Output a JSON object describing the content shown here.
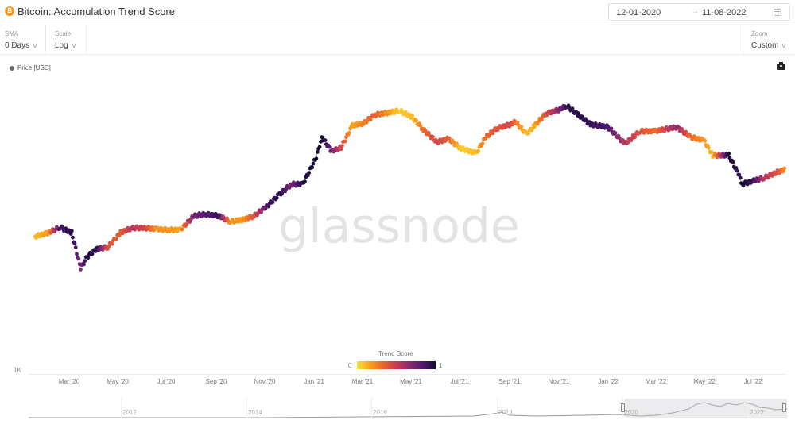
{
  "header": {
    "asset_icon": "bitcoin-icon",
    "title": "Bitcoin: Accumulation Trend Score",
    "date_from": "12-01-2020",
    "date_arrow": "→",
    "date_to": "11-08-2022",
    "calendar_icon": "calendar-icon"
  },
  "toolbar": {
    "sma": {
      "label": "SMA",
      "value": "0 Days"
    },
    "scale": {
      "label": "Scale",
      "value": "Log"
    },
    "zoom": {
      "label": "Zoom",
      "value": "Custom"
    },
    "chevron": "∨"
  },
  "legend": {
    "series_label": "Price [USD]",
    "camera_icon": "camera-icon"
  },
  "watermark": "glassnode",
  "colors": {
    "trend_low": "#fce03a",
    "trend_mid": "#c73c55",
    "trend_high": "#140b35",
    "accent": "#f7931a"
  },
  "navigator": {
    "years": [
      "2012",
      "2014",
      "2016",
      "2018",
      "2020",
      "2022"
    ]
  },
  "chart_data": {
    "type": "scatter",
    "title": "Bitcoin: Accumulation Trend Score",
    "xlabel": "",
    "ylabel": "Price [USD]",
    "y_scale": "log",
    "y_tick_labels": [
      "1K"
    ],
    "x_tick_labels": [
      "Mar '20",
      "May '20",
      "Jul '20",
      "Sep '20",
      "Nov '20",
      "Jan '21",
      "Mar '21",
      "May '21",
      "Jul '21",
      "Sep '21",
      "Nov '21",
      "Jan '22",
      "Mar '22",
      "May '22",
      "Jul '22"
    ],
    "color_axis": {
      "title": "Trend Score",
      "min": 0,
      "max": 1,
      "min_label": "0",
      "max_label": "1"
    },
    "legend": [
      "Price [USD]"
    ],
    "grid": false,
    "x": [
      "2020-01-15",
      "2020-02-01",
      "2020-02-15",
      "2020-03-01",
      "2020-03-12",
      "2020-03-20",
      "2020-04-01",
      "2020-04-15",
      "2020-05-01",
      "2020-05-15",
      "2020-06-01",
      "2020-06-15",
      "2020-07-01",
      "2020-07-15",
      "2020-08-01",
      "2020-08-15",
      "2020-09-01",
      "2020-09-15",
      "2020-10-01",
      "2020-10-15",
      "2020-11-01",
      "2020-11-15",
      "2020-12-01",
      "2020-12-15",
      "2021-01-01",
      "2021-01-08",
      "2021-01-20",
      "2021-02-01",
      "2021-02-15",
      "2021-03-01",
      "2021-03-15",
      "2021-04-01",
      "2021-04-15",
      "2021-05-01",
      "2021-05-15",
      "2021-06-01",
      "2021-06-15",
      "2021-07-01",
      "2021-07-20",
      "2021-08-01",
      "2021-08-15",
      "2021-09-01",
      "2021-09-07",
      "2021-09-21",
      "2021-10-01",
      "2021-10-15",
      "2021-11-01",
      "2021-11-10",
      "2021-11-25",
      "2021-12-10",
      "2022-01-01",
      "2022-01-22",
      "2022-02-10",
      "2022-03-01",
      "2022-03-28",
      "2022-04-15",
      "2022-05-01",
      "2022-05-12",
      "2022-06-01",
      "2022-06-13",
      "2022-06-18",
      "2022-07-01",
      "2022-07-15",
      "2022-08-01",
      "2022-08-11"
    ],
    "price_usd": [
      8300,
      8800,
      9600,
      8800,
      5000,
      6000,
      6800,
      7000,
      8800,
      9500,
      9500,
      9300,
      9200,
      9200,
      11500,
      11800,
      11500,
      10500,
      10800,
      11500,
      13500,
      16000,
      19000,
      19000,
      29000,
      40000,
      32000,
      34000,
      48000,
      50000,
      57000,
      59000,
      61000,
      55000,
      45000,
      37000,
      39000,
      33500,
      31000,
      40000,
      46000,
      49000,
      51000,
      42000,
      48000,
      58000,
      62000,
      66000,
      57000,
      49000,
      47000,
      36000,
      44000,
      44000,
      47000,
      40000,
      38000,
      30000,
      30000,
      22500,
      19000,
      20000,
      21000,
      23000,
      24000
    ],
    "trend_score": [
      0.1,
      0.2,
      0.85,
      0.95,
      0.7,
      0.95,
      0.95,
      0.4,
      0.35,
      0.55,
      0.45,
      0.2,
      0.2,
      0.15,
      0.75,
      0.8,
      0.9,
      0.2,
      0.2,
      0.4,
      0.85,
      0.95,
      0.7,
      0.95,
      1.0,
      1.0,
      0.75,
      0.45,
      0.15,
      0.25,
      0.35,
      0.2,
      0.05,
      0.1,
      0.3,
      0.45,
      0.35,
      0.05,
      0.1,
      0.3,
      0.4,
      0.45,
      0.3,
      0.1,
      0.15,
      0.4,
      0.7,
      0.9,
      0.95,
      0.9,
      0.85,
      0.55,
      0.4,
      0.3,
      0.65,
      0.3,
      0.2,
      0.1,
      1.0,
      0.9,
      1.0,
      0.9,
      0.55,
      0.4,
      0.2
    ]
  }
}
